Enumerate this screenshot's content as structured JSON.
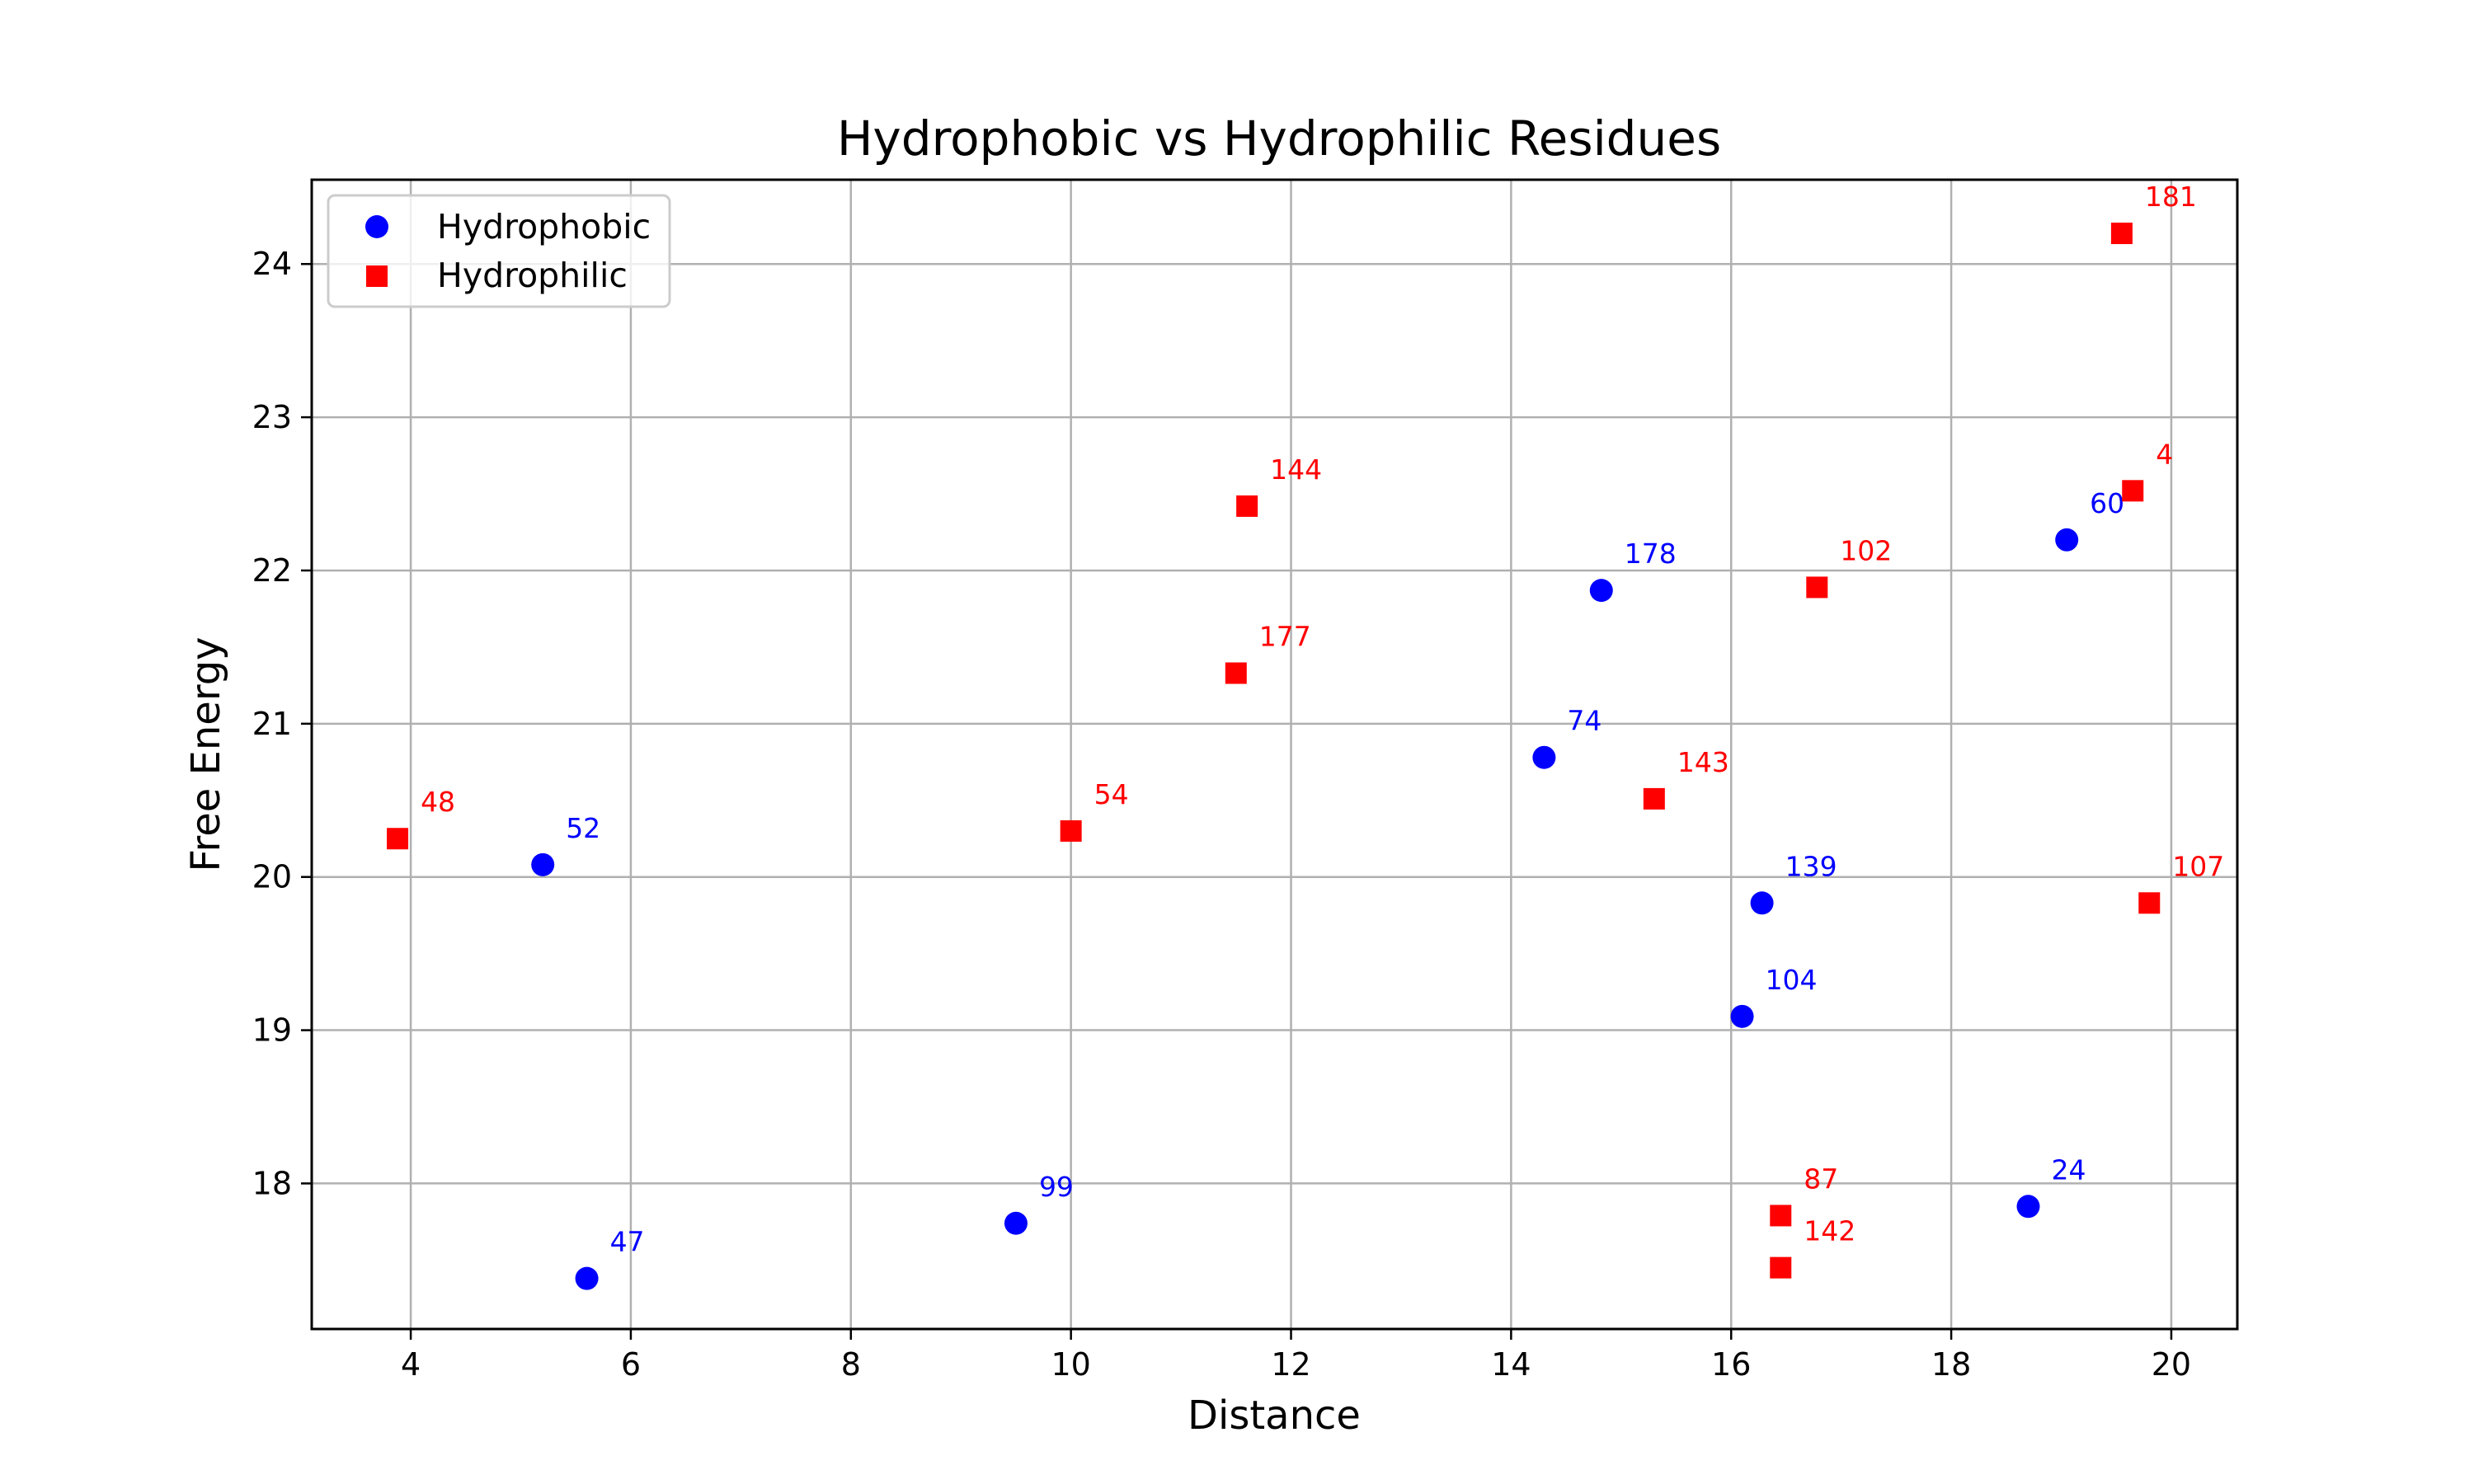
{
  "chart_data": {
    "type": "scatter",
    "title": "Hydrophobic vs Hydrophilic Residues",
    "xlabel": "Distance",
    "ylabel": "Free Energy",
    "xlim": [
      3.1,
      20.6
    ],
    "ylim": [
      17.05,
      24.55
    ],
    "xticks": [
      4,
      6,
      8,
      10,
      12,
      14,
      16,
      18,
      20
    ],
    "yticks": [
      18,
      19,
      20,
      21,
      22,
      23,
      24
    ],
    "grid": true,
    "legend_position": "upper-left",
    "series": [
      {
        "name": "Hydrophobic",
        "marker": "circle",
        "color": "#0000ff",
        "points": [
          {
            "x": 5.2,
            "y": 20.08,
            "label": "52"
          },
          {
            "x": 5.6,
            "y": 17.38,
            "label": "47"
          },
          {
            "x": 9.5,
            "y": 17.74,
            "label": "99"
          },
          {
            "x": 14.3,
            "y": 20.78,
            "label": "74"
          },
          {
            "x": 14.82,
            "y": 21.87,
            "label": "178"
          },
          {
            "x": 16.28,
            "y": 19.83,
            "label": "139"
          },
          {
            "x": 16.1,
            "y": 19.09,
            "label": "104"
          },
          {
            "x": 18.7,
            "y": 17.85,
            "label": "24"
          },
          {
            "x": 19.05,
            "y": 22.2,
            "label": "60"
          }
        ]
      },
      {
        "name": "Hydrophilic",
        "marker": "square",
        "color": "#ff0000",
        "points": [
          {
            "x": 3.88,
            "y": 20.25,
            "label": "48"
          },
          {
            "x": 10.0,
            "y": 20.3,
            "label": "54"
          },
          {
            "x": 11.5,
            "y": 21.33,
            "label": "177"
          },
          {
            "x": 11.6,
            "y": 22.42,
            "label": "144"
          },
          {
            "x": 15.3,
            "y": 20.51,
            "label": "143"
          },
          {
            "x": 16.78,
            "y": 21.89,
            "label": "102"
          },
          {
            "x": 16.45,
            "y": 17.79,
            "label": "87"
          },
          {
            "x": 16.45,
            "y": 17.45,
            "label": "142"
          },
          {
            "x": 19.55,
            "y": 24.2,
            "label": "181"
          },
          {
            "x": 19.65,
            "y": 22.52,
            "label": "4"
          },
          {
            "x": 19.8,
            "y": 19.83,
            "label": "107"
          }
        ]
      }
    ]
  }
}
